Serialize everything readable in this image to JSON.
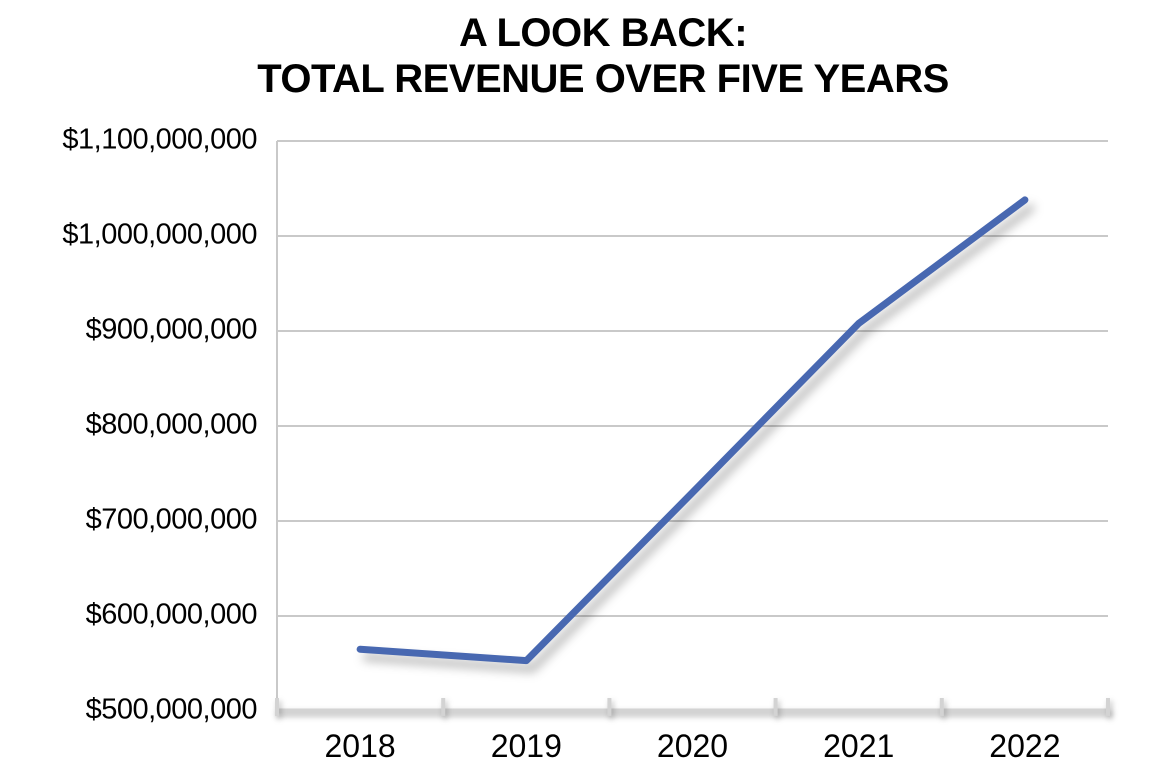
{
  "title": {
    "line1": "A LOOK BACK:",
    "line2": "TOTAL REVENUE OVER FIVE YEARS"
  },
  "chart_data": {
    "type": "line",
    "title": "A LOOK BACK: TOTAL REVENUE OVER FIVE YEARS",
    "categories": [
      "2018",
      "2019",
      "2020",
      "2021",
      "2022"
    ],
    "series": [
      {
        "name": "Total Revenue",
        "values": [
          565000000,
          553000000,
          730000000,
          908000000,
          1038000000
        ]
      }
    ],
    "xlabel": "",
    "ylabel": "",
    "ylim": [
      500000000,
      1100000000
    ],
    "ytick_step": 100000000,
    "ytick_labels": [
      "$500,000,000",
      "$600,000,000",
      "$700,000,000",
      "$800,000,000",
      "$900,000,000",
      "$1,000,000,000",
      "$1,100,000,000"
    ],
    "grid": "horizontal",
    "legend": "none",
    "line_color": "#4868b1",
    "line_width": 7,
    "grid_color": "#c9c9c9",
    "axis_color": "#d3d3d3",
    "text_color": "#000000",
    "background": "#ffffff"
  }
}
